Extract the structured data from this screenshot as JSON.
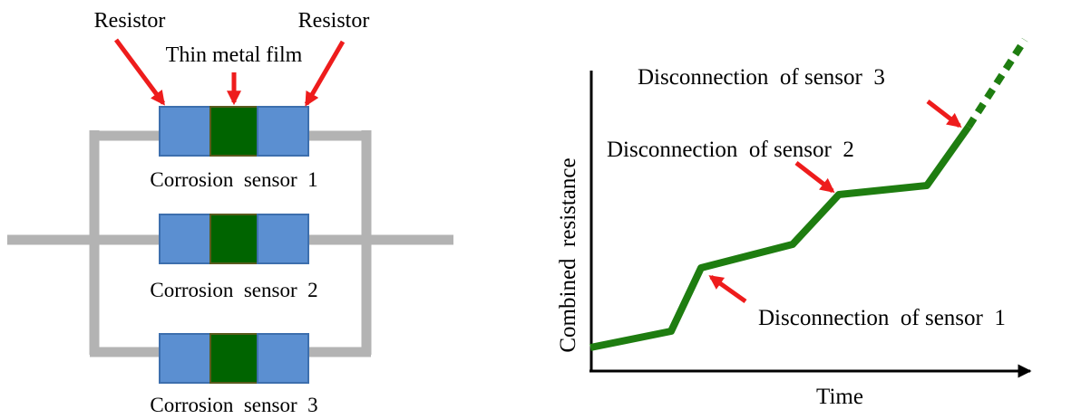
{
  "circuit": {
    "labels": {
      "resistor_left": "Resistor",
      "resistor_right": "Resistor",
      "thin_metal_film": "Thin metal film"
    },
    "sensors": [
      {
        "label": "Corrosion  sensor  1"
      },
      {
        "label": "Corrosion  sensor  2"
      },
      {
        "label": "Corrosion  sensor  3"
      }
    ],
    "colors": {
      "wire": "#b3b3b3",
      "resistor": "#5b8fd1",
      "resistor_edge": "#3d6fae",
      "film": "#006400",
      "arrow": "#ee1c1c"
    }
  },
  "graph": {
    "xlabel": "Time",
    "ylabel": "Combined  resistance",
    "annotations": [
      {
        "text": "Disconnection  of sensor  1"
      },
      {
        "text": "Disconnection  of sensor  2"
      },
      {
        "text": "Disconnection  of sensor  3"
      }
    ],
    "colors": {
      "line": "#1e7d10",
      "axis": "#000000",
      "arrow": "#ee1c1c"
    }
  }
}
